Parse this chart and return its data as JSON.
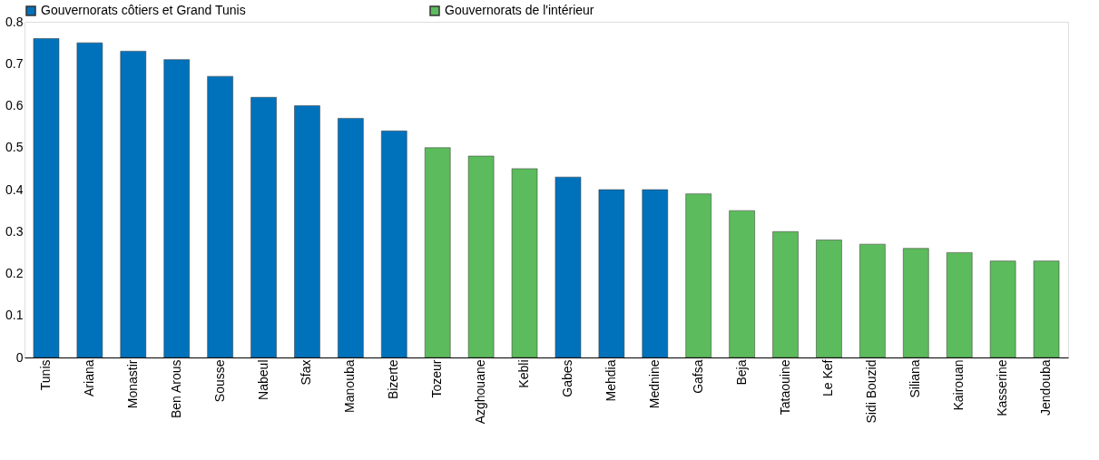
{
  "chart_data": {
    "type": "bar",
    "categories": [
      "Tunis",
      "Ariana",
      "Monastir",
      "Ben Arous",
      "Sousse",
      "Nabeul",
      "Sfax",
      "Manouba",
      "Bizerte",
      "Tozeur",
      "Azghouane",
      "Kebli",
      "Gabes",
      "Mehdia",
      "Mednine",
      "Gafsa",
      "Beja",
      "Tataouine",
      "Le Kef",
      "Sidi Bouzid",
      "Siliana",
      "Kairouan",
      "Kasserine",
      "Jendouba"
    ],
    "series": [
      {
        "name": "Gouvernorats côtiers et Grand Tunis",
        "color": "#0072bc",
        "values": [
          0.76,
          0.75,
          0.73,
          0.71,
          0.67,
          0.62,
          0.6,
          0.57,
          0.54,
          null,
          null,
          null,
          0.43,
          0.4,
          0.4,
          null,
          null,
          null,
          null,
          null,
          null,
          null,
          null,
          null
        ]
      },
      {
        "name": "Gouvernorats de l'intérieur",
        "color": "#5cbb5c",
        "values": [
          null,
          null,
          null,
          null,
          null,
          null,
          null,
          null,
          null,
          0.5,
          0.48,
          0.45,
          null,
          null,
          null,
          0.39,
          0.35,
          0.3,
          0.28,
          0.27,
          0.26,
          0.25,
          0.23,
          0.23
        ]
      }
    ],
    "ylim": [
      0,
      0.8
    ],
    "yticks": [
      0,
      0.1,
      0.2,
      0.3,
      0.4,
      0.5,
      0.6,
      0.7,
      0.8
    ],
    "grid": false,
    "legend": "top"
  }
}
